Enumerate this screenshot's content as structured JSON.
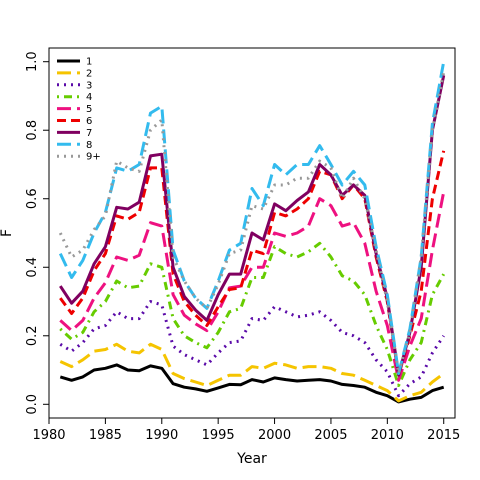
{
  "chart_data": {
    "type": "line",
    "title": "",
    "xlabel": "Year",
    "ylabel": "F",
    "xlim": [
      1980,
      2016
    ],
    "ylim": [
      -0.04,
      1.04
    ],
    "x_ticks": [
      1980,
      1985,
      1990,
      1995,
      2000,
      2005,
      2010,
      2015
    ],
    "y_ticks": [
      0.0,
      0.2,
      0.4,
      0.6,
      0.8,
      1.0
    ],
    "x_tick_labels": [
      "1980",
      "1985",
      "1990",
      "1995",
      "2000",
      "2005",
      "2010",
      "2015"
    ],
    "y_tick_labels": [
      "0.0",
      "0.2",
      "0.4",
      "0.6",
      "0.8",
      "1.0"
    ],
    "grid": false,
    "legend_position": "top-left",
    "x": [
      1981,
      1982,
      1983,
      1984,
      1985,
      1986,
      1987,
      1988,
      1989,
      1990,
      1991,
      1992,
      1993,
      1994,
      1995,
      1996,
      1997,
      1998,
      1999,
      2000,
      2001,
      2002,
      2003,
      2004,
      2005,
      2006,
      2007,
      2008,
      2009,
      2010,
      2011,
      2012,
      2013,
      2014,
      2015
    ],
    "series": [
      {
        "name": "1",
        "color": "#000000",
        "dash": "solid",
        "values": [
          0.08,
          0.07,
          0.08,
          0.1,
          0.105,
          0.115,
          0.1,
          0.098,
          0.112,
          0.105,
          0.06,
          0.05,
          0.045,
          0.038,
          0.048,
          0.058,
          0.057,
          0.072,
          0.065,
          0.077,
          0.072,
          0.068,
          0.07,
          0.072,
          0.068,
          0.058,
          0.055,
          0.05,
          0.035,
          0.025,
          0.007,
          0.015,
          0.02,
          0.04,
          0.05
        ]
      },
      {
        "name": "2",
        "color": "#f5c400",
        "dash": "long",
        "values": [
          0.125,
          0.11,
          0.13,
          0.155,
          0.16,
          0.175,
          0.155,
          0.15,
          0.175,
          0.16,
          0.09,
          0.075,
          0.065,
          0.055,
          0.07,
          0.085,
          0.085,
          0.11,
          0.105,
          0.12,
          0.115,
          0.105,
          0.11,
          0.11,
          0.105,
          0.09,
          0.085,
          0.07,
          0.055,
          0.04,
          0.01,
          0.025,
          0.035,
          0.065,
          0.09
        ]
      },
      {
        "name": "3",
        "color": "#5a0aa8",
        "dash": "dot",
        "values": [
          0.175,
          0.155,
          0.18,
          0.22,
          0.23,
          0.27,
          0.25,
          0.25,
          0.3,
          0.29,
          0.17,
          0.145,
          0.13,
          0.115,
          0.15,
          0.18,
          0.185,
          0.25,
          0.245,
          0.285,
          0.27,
          0.255,
          0.26,
          0.27,
          0.245,
          0.21,
          0.2,
          0.18,
          0.13,
          0.095,
          0.025,
          0.06,
          0.08,
          0.15,
          0.2
        ]
      },
      {
        "name": "4",
        "color": "#66cc00",
        "dash": "dashdot",
        "values": [
          0.22,
          0.19,
          0.21,
          0.27,
          0.3,
          0.36,
          0.34,
          0.345,
          0.41,
          0.4,
          0.25,
          0.2,
          0.18,
          0.165,
          0.21,
          0.27,
          0.28,
          0.37,
          0.37,
          0.46,
          0.44,
          0.43,
          0.445,
          0.47,
          0.43,
          0.375,
          0.36,
          0.32,
          0.23,
          0.16,
          0.055,
          0.13,
          0.18,
          0.32,
          0.38
        ]
      },
      {
        "name": "5",
        "color": "#ee1180",
        "dash": "long",
        "values": [
          0.245,
          0.215,
          0.245,
          0.31,
          0.355,
          0.43,
          0.42,
          0.435,
          0.53,
          0.52,
          0.32,
          0.26,
          0.235,
          0.215,
          0.27,
          0.34,
          0.345,
          0.4,
          0.4,
          0.5,
          0.49,
          0.5,
          0.52,
          0.6,
          0.58,
          0.52,
          0.53,
          0.47,
          0.33,
          0.23,
          0.07,
          0.17,
          0.25,
          0.45,
          0.62
        ]
      },
      {
        "name": "6",
        "color": "#ee0000",
        "dash": "dash",
        "values": [
          0.31,
          0.265,
          0.31,
          0.39,
          0.44,
          0.55,
          0.54,
          0.56,
          0.69,
          0.69,
          0.38,
          0.3,
          0.26,
          0.23,
          0.285,
          0.335,
          0.34,
          0.45,
          0.44,
          0.56,
          0.55,
          0.57,
          0.6,
          0.68,
          0.67,
          0.6,
          0.64,
          0.6,
          0.43,
          0.3,
          0.085,
          0.2,
          0.33,
          0.6,
          0.74
        ]
      },
      {
        "name": "7",
        "color": "#800060",
        "dash": "solid",
        "values": [
          0.345,
          0.295,
          0.33,
          0.41,
          0.46,
          0.575,
          0.57,
          0.59,
          0.725,
          0.73,
          0.4,
          0.315,
          0.275,
          0.245,
          0.32,
          0.38,
          0.38,
          0.5,
          0.48,
          0.585,
          0.565,
          0.595,
          0.62,
          0.7,
          0.67,
          0.61,
          0.64,
          0.61,
          0.44,
          0.31,
          0.085,
          0.21,
          0.4,
          0.8,
          0.96
        ]
      },
      {
        "name": "8",
        "color": "#33bbee",
        "dash": "long",
        "values": [
          0.44,
          0.37,
          0.42,
          0.5,
          0.56,
          0.69,
          0.68,
          0.7,
          0.85,
          0.87,
          0.45,
          0.36,
          0.31,
          0.28,
          0.36,
          0.45,
          0.47,
          0.63,
          0.58,
          0.7,
          0.67,
          0.7,
          0.7,
          0.755,
          0.7,
          0.64,
          0.68,
          0.64,
          0.46,
          0.32,
          0.09,
          0.22,
          0.43,
          0.82,
          1.0
        ]
      },
      {
        "name": "9+",
        "color": "#999999",
        "dash": "dot",
        "values": [
          0.5,
          0.43,
          0.45,
          0.51,
          0.55,
          0.71,
          0.69,
          0.68,
          0.8,
          0.83,
          0.43,
          0.36,
          0.31,
          0.28,
          0.35,
          0.44,
          0.45,
          0.58,
          0.57,
          0.64,
          0.64,
          0.66,
          0.66,
          0.71,
          0.69,
          0.6,
          0.66,
          0.6,
          0.45,
          0.3,
          0.09,
          0.21,
          0.43,
          0.8,
          0.97
        ]
      }
    ]
  }
}
